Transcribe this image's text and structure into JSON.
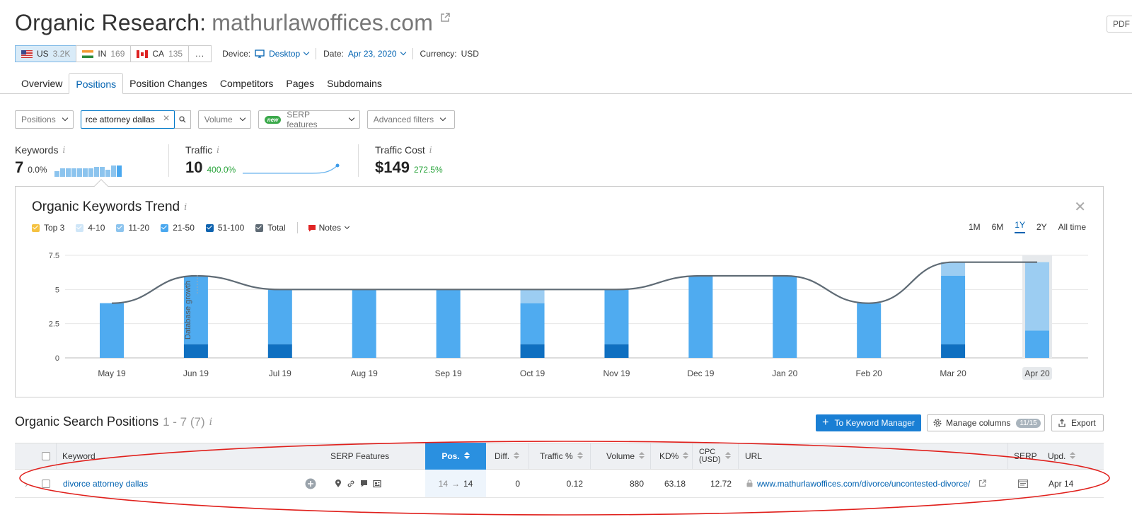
{
  "header": {
    "title_prefix": "Organic Research:",
    "domain": "mathurlawoffices.com",
    "pdf_label": "PDF"
  },
  "databases": [
    {
      "code": "US",
      "count": "3.2K",
      "flag": "flag-us",
      "active": true
    },
    {
      "code": "IN",
      "count": "169",
      "flag": "flag-in",
      "active": false
    },
    {
      "code": "CA",
      "count": "135",
      "flag": "flag-ca",
      "active": false
    }
  ],
  "more_label": "...",
  "meta": {
    "device_label": "Device:",
    "device_value": "Desktop",
    "date_label": "Date:",
    "date_value": "Apr 23, 2020",
    "currency_label": "Currency:",
    "currency_value": "USD"
  },
  "tabs": [
    "Overview",
    "Positions",
    "Position Changes",
    "Competitors",
    "Pages",
    "Subdomains"
  ],
  "active_tab": "Positions",
  "filters": {
    "positions": "Positions",
    "search_value": "rce attorney dallas",
    "volume": "Volume",
    "new_badge": "new",
    "serp_features": "SERP features",
    "advanced": "Advanced filters"
  },
  "summary": {
    "keywords": {
      "label": "Keywords",
      "value": "7",
      "delta": "0.0%"
    },
    "traffic": {
      "label": "Traffic",
      "value": "10",
      "delta": "400.0%"
    },
    "traffic_cost": {
      "label": "Traffic Cost",
      "value": "$149",
      "delta": "272.5%"
    },
    "info": "i"
  },
  "trend": {
    "title": "Organic Keywords Trend",
    "info": "i",
    "close": "✕",
    "legend": [
      {
        "label": "Top 3",
        "color": "#f5c242"
      },
      {
        "label": "4-10",
        "color": "#cfe6f8"
      },
      {
        "label": "11-20",
        "color": "#8cc4ee"
      },
      {
        "label": "21-50",
        "color": "#4aa8ef"
      },
      {
        "label": "51-100",
        "color": "#0f64b0"
      },
      {
        "label": "Total",
        "color": "#5f6b75"
      }
    ],
    "notes_label": "Notes",
    "periods": [
      "1M",
      "6M",
      "1Y",
      "2Y",
      "All time"
    ],
    "active_period": "1Y",
    "annotation": "Database growth"
  },
  "chart_data": {
    "type": "bar",
    "categories": [
      "May 19",
      "Jun 19",
      "Jul 19",
      "Aug 19",
      "Sep 19",
      "Oct 19",
      "Nov 19",
      "Dec 19",
      "Jan 20",
      "Feb 20",
      "Mar 20",
      "Apr 20"
    ],
    "y_ticks": [
      "0",
      "2.5",
      "5",
      "7.5"
    ],
    "ylim": [
      0,
      7.5
    ],
    "stacked": true,
    "series": [
      {
        "name": "51-100",
        "color": "#0f6fc0",
        "values": [
          0,
          1,
          1,
          0,
          0,
          1,
          1,
          0,
          0,
          0,
          1,
          0
        ]
      },
      {
        "name": "21-50",
        "color": "#4fabf0",
        "values": [
          4,
          5,
          4,
          5,
          5,
          3,
          4,
          6,
          6,
          4,
          5,
          2
        ]
      },
      {
        "name": "11-20",
        "color": "#9ccdf2",
        "values": [
          0,
          0,
          0,
          0,
          0,
          1,
          0,
          0,
          0,
          0,
          1,
          5
        ]
      }
    ],
    "total": {
      "name": "Total",
      "color": "#5f6b75",
      "values": [
        4,
        6,
        5,
        5,
        5,
        5,
        5,
        6,
        6,
        4,
        7,
        7
      ]
    },
    "highlighted_category": "Apr 20"
  },
  "positions": {
    "title": "Organic Search Positions",
    "range": "1 - 7 (7)",
    "info": "i",
    "to_km": "To Keyword Manager",
    "manage_columns": "Manage columns",
    "columns_badge": "11/15",
    "export": "Export"
  },
  "table": {
    "headers": {
      "keyword": "Keyword",
      "serp_features": "SERP Features",
      "pos": "Pos.",
      "diff": "Diff.",
      "traffic_pct": "Traffic %",
      "volume": "Volume",
      "kd": "KD%",
      "cpc": "CPC\n(USD)",
      "url": "URL",
      "serp": "SERP",
      "upd": "Upd."
    },
    "rows": [
      {
        "keyword": "divorce attorney dallas",
        "pos_from": "14",
        "pos_to": "14",
        "diff": "0",
        "traffic_pct": "0.12",
        "volume": "880",
        "kd": "63.18",
        "cpc": "12.72",
        "url": "www.mathurlawoffices.com/divorce/uncontested-divorce/",
        "upd": "Apr 14"
      }
    ]
  }
}
